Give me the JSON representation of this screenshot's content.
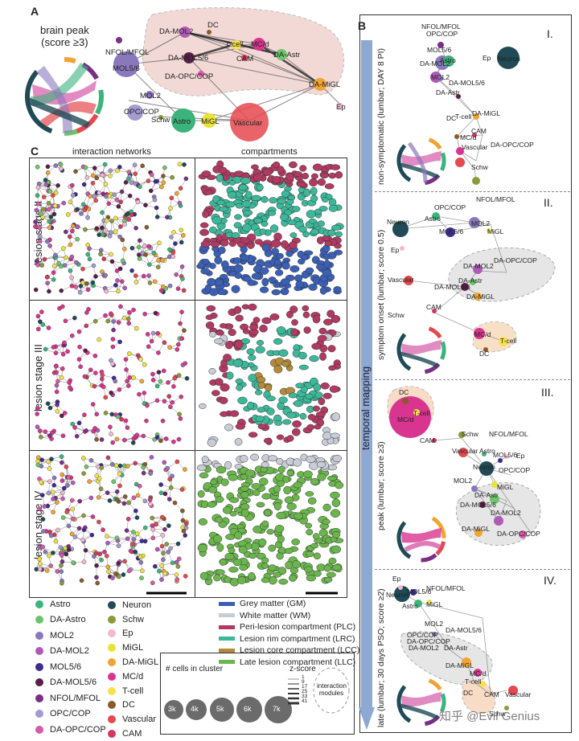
{
  "panelA": {
    "letter": "A",
    "title_line1": "brain peak",
    "title_line2": "(score ≥3)",
    "nodes": [
      "NFOL/MFOL",
      "MOL5/6",
      "DA-MOL2",
      "DA-MOL5/6",
      "DA-OPC/COP",
      "MOL2",
      "OPC/COP",
      "Schw",
      "Astro",
      "MiGL",
      "Vascular",
      "DC",
      "T-cell",
      "MC/d",
      "CAM",
      "DA-Astr",
      "DA-MiGL",
      "Ep"
    ]
  },
  "panelB": {
    "letter": "B",
    "axis_label": "temporal mapping",
    "rows": [
      {
        "roman": "I.",
        "label": "non-symptomatic (lumbar; DAY 8 PI)",
        "nodes": [
          "NFOL/MFOL",
          "OPC/COP",
          "MOL5/6",
          "Astro",
          "Ep",
          "Neuron",
          "DA-MOL2",
          "MOL2",
          "DA-MOL5/6",
          "DA-Astr",
          "DA-MiGL",
          "DC",
          "T-cell",
          "CAM",
          "MC/d",
          "Vascular",
          "DA-OPC/COP",
          "Schw"
        ]
      },
      {
        "roman": "II.",
        "label": "symptom onset (lumbar; score 0.5)",
        "nodes": [
          "NFOL/MFOL",
          "OPC/COP",
          "Neuron",
          "Astro",
          "MOL2",
          "MOL5/6",
          "MiGL",
          "Ep",
          "DA-MOL2",
          "DA-OPC/COP",
          "Vascular",
          "DA-MOL5/6",
          "DA-Astr",
          "DA-MiGL",
          "CAM",
          "Schw",
          "MC/d",
          "T-cell",
          "DC"
        ]
      },
      {
        "roman": "III.",
        "label": "peak (lumbar; score ≥3)",
        "nodes": [
          "DC",
          "T-cell",
          "MC/d",
          "CAM",
          "Schw",
          "NFOL/MFOL",
          "Vascular",
          "Astro",
          "MOL5/6",
          "Ep",
          "Neuron",
          "OPC/COP",
          "MOL2",
          "MiGL",
          "DA-Astr",
          "DA-MOL5/6",
          "DA-MOL2",
          "DA-MiGL",
          "DA-OPC/COP"
        ]
      },
      {
        "roman": "IV.",
        "label": "late (lumbar; 30 days PSO; score ≥2)",
        "nodes": [
          "Ep",
          "NFOL/MFOL",
          "MOL5/6",
          "Neuron",
          "Astro",
          "MiGL",
          "MOL2",
          "DA-MOL5/6",
          "OPC/COP",
          "DA-OPC/COP",
          "DA-MOL2",
          "DA-Astr",
          "DA-MiGL",
          "MC/d",
          "T-cell",
          "DC",
          "CAM",
          "Vascular",
          "Schw"
        ]
      }
    ]
  },
  "panelC": {
    "letter": "C",
    "col1": "interaction networks",
    "col2": "compartments",
    "stages": [
      "lesion stage II",
      "lesion stage III",
      "lesion stage IV"
    ]
  },
  "legend": {
    "col1": [
      {
        "label": "Astro",
        "color": "#3bb37b"
      },
      {
        "label": "DA-Astro",
        "color": "#6cc56d"
      },
      {
        "label": "MOL2",
        "color": "#8a78bd"
      },
      {
        "label": "DA-MOL2",
        "color": "#b05ab8"
      },
      {
        "label": "MOL5/6",
        "color": "#3d2b8f"
      },
      {
        "label": "DA-MOL5/6",
        "color": "#5a1e4a"
      },
      {
        "label": "NFOL/MFOL",
        "color": "#7a2f86"
      },
      {
        "label": "OPC/COP",
        "color": "#a39bd0"
      },
      {
        "label": "DA-OPC/COP",
        "color": "#d65aa8"
      }
    ],
    "col2": [
      {
        "label": "Neuron",
        "color": "#1f4a56"
      },
      {
        "label": "Schw",
        "color": "#8a9a3a"
      },
      {
        "label": "Ep",
        "color": "#f3b9d0"
      },
      {
        "label": "MiGL",
        "color": "#e8e335"
      },
      {
        "label": "DA-MiGL",
        "color": "#f0a431"
      },
      {
        "label": "MC/d",
        "color": "#d9348f"
      },
      {
        "label": "T-cell",
        "color": "#f6e24b"
      },
      {
        "label": "DC",
        "color": "#8a5a2b"
      },
      {
        "label": "Vascular",
        "color": "#e5484d"
      },
      {
        "label": "CAM",
        "color": "#d2395e"
      }
    ],
    "compartments": [
      {
        "label": "Grey matter (GM)",
        "color": "#3a5fb5"
      },
      {
        "label": "White matter (WM)",
        "color": "#c8ccd6"
      },
      {
        "label": "Peri-lesion compartment (PLC)",
        "color": "#b03a61"
      },
      {
        "label": "Lesion rim compartment (LRC)",
        "color": "#3bb89a"
      },
      {
        "label": "Lesion core compartment (LCC)",
        "color": "#b38a3a"
      },
      {
        "label": "Late lesion compartment (LLC)",
        "color": "#6ab64c"
      }
    ],
    "size_title": "# cells in cluster",
    "sizes": [
      "3k",
      "4k",
      "5k",
      "6k",
      "7k"
    ],
    "zscore_title": "z-score",
    "zscores": [
      "1",
      "9",
      "17",
      "25",
      "33",
      "41"
    ],
    "modules_label_1": "interaction",
    "modules_label_2": "modules"
  },
  "watermark": "知乎 @Evil Genius"
}
